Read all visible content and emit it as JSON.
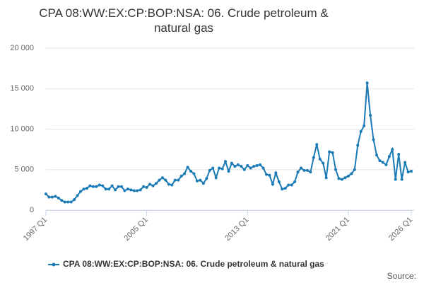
{
  "chart_data": {
    "type": "line",
    "title": "CPA 08:WW:EX:CP:BOP:NSA: 06. Crude petroleum & natural gas",
    "source": "Source:",
    "categories": [
      "1997 Q1",
      null,
      null,
      null,
      null,
      null,
      null,
      null,
      null,
      null,
      null,
      null,
      null,
      null,
      null,
      null,
      null,
      null,
      null,
      null,
      null,
      null,
      null,
      null,
      null,
      null,
      null,
      null,
      null,
      null,
      null,
      null,
      "2005 Q1",
      null,
      null,
      null,
      null,
      null,
      null,
      null,
      null,
      null,
      null,
      null,
      null,
      null,
      null,
      null,
      null,
      null,
      null,
      null,
      null,
      null,
      null,
      null,
      null,
      null,
      null,
      null,
      null,
      null,
      null,
      null,
      "2013 Q1",
      null,
      null,
      null,
      null,
      null,
      null,
      null,
      null,
      null,
      null,
      null,
      null,
      null,
      null,
      null,
      null,
      null,
      null,
      null,
      null,
      null,
      null,
      null,
      null,
      null,
      null,
      null,
      null,
      null,
      null,
      null,
      "2021 Q1",
      null,
      null,
      null,
      null,
      null,
      null,
      null,
      null,
      null,
      null,
      null,
      null,
      null,
      null,
      null,
      null,
      null,
      null,
      null,
      "2026 Q1"
    ],
    "series": [
      {
        "name": "CPA 08:WW:EX:CP:BOP:NSA: 06. Crude petroleum & natural gas",
        "color": "#1a7ab5",
        "values": [
          2000,
          1600,
          1600,
          1700,
          1500,
          1200,
          1000,
          1000,
          1000,
          1300,
          1800,
          2300,
          2600,
          2700,
          3000,
          2900,
          2900,
          3100,
          3000,
          2600,
          2600,
          3000,
          2500,
          2900,
          2900,
          2400,
          2600,
          2500,
          2400,
          2400,
          2500,
          2900,
          2800,
          3200,
          3000,
          3300,
          3700,
          4000,
          3700,
          3200,
          3100,
          3700,
          3700,
          4200,
          4500,
          5300,
          4800,
          4500,
          3600,
          3700,
          3300,
          3900,
          4900,
          5200,
          4000,
          5200,
          5100,
          6000,
          4800,
          5800,
          5400,
          5600,
          5400,
          5000,
          5500,
          5200,
          5400,
          5500,
          5600,
          5200,
          4400,
          4300,
          3200,
          4600,
          3500,
          2600,
          2700,
          3100,
          3100,
          3500,
          4700,
          5200,
          4900,
          4900,
          4700,
          6500,
          8100,
          6300,
          5800,
          4000,
          7200,
          7100,
          5000,
          3900,
          3800,
          4000,
          4200,
          4500,
          5000,
          8000,
          9700,
          10400,
          15700,
          11700,
          8700,
          6800,
          6100,
          5900,
          5600,
          6600,
          7500,
          3800,
          6900,
          3800,
          5900,
          4700,
          4800
        ]
      }
    ],
    "ylim": [
      0,
      20000
    ],
    "yticks": [
      0,
      {
        "value": 5000,
        "label": "5 000"
      },
      {
        "value": 10000,
        "label": "10 000"
      },
      {
        "value": 15000,
        "label": "15 000"
      },
      {
        "value": 20000,
        "label": "20 000"
      }
    ],
    "grid": true
  }
}
